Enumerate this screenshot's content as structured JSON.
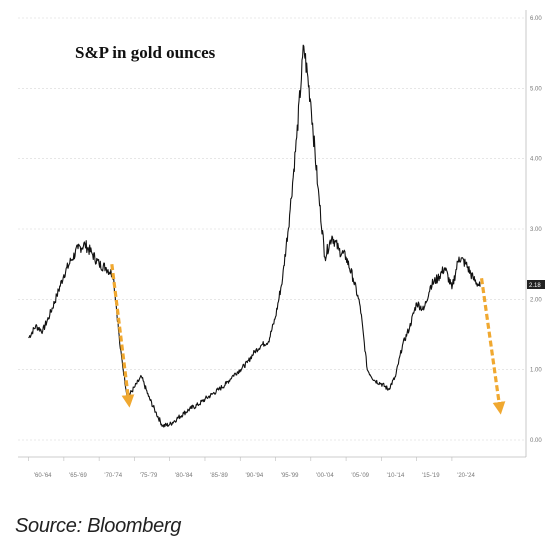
{
  "chart_data": {
    "type": "line",
    "title": "S&P in gold ounces",
    "xlabel": "",
    "ylabel": "",
    "ylim": [
      0,
      6
    ],
    "yticks": [
      "0.00",
      "1.00",
      "2.00",
      "3.00",
      "4.00",
      "5.00",
      "6.00"
    ],
    "xtick_labels": [
      "'60-'64",
      "'65-'69",
      "'70-'74",
      "'75-'79",
      "'80-'84",
      "'85-'89",
      "'90-'94",
      "'95-'99",
      "'00-'04",
      "'05-'09",
      "'10-'14",
      "'15-'19",
      "'20-'24"
    ],
    "last_value_label": "2.18",
    "grid": "horizontal",
    "series": [
      {
        "values": [
          [
            1960.0,
            1.45
          ],
          [
            1961.0,
            1.62
          ],
          [
            1962.0,
            1.55
          ],
          [
            1963.0,
            1.78
          ],
          [
            1964.0,
            2.05
          ],
          [
            1965.0,
            2.35
          ],
          [
            1966.0,
            2.55
          ],
          [
            1967.0,
            2.72
          ],
          [
            1968.0,
            2.78
          ],
          [
            1969.0,
            2.65
          ],
          [
            1970.0,
            2.5
          ],
          [
            1971.0,
            2.45
          ],
          [
            1972.0,
            2.35
          ],
          [
            1973.0,
            1.3
          ],
          [
            1974.0,
            0.6
          ],
          [
            1975.0,
            0.75
          ],
          [
            1976.0,
            0.9
          ],
          [
            1977.0,
            0.62
          ],
          [
            1978.0,
            0.4
          ],
          [
            1979.0,
            0.2
          ],
          [
            1980.0,
            0.22
          ],
          [
            1981.0,
            0.3
          ],
          [
            1982.0,
            0.38
          ],
          [
            1983.0,
            0.45
          ],
          [
            1984.0,
            0.5
          ],
          [
            1985.0,
            0.58
          ],
          [
            1986.0,
            0.65
          ],
          [
            1987.0,
            0.72
          ],
          [
            1988.0,
            0.8
          ],
          [
            1989.0,
            0.92
          ],
          [
            1990.0,
            1.0
          ],
          [
            1991.0,
            1.1
          ],
          [
            1992.0,
            1.25
          ],
          [
            1993.0,
            1.35
          ],
          [
            1994.0,
            1.4
          ],
          [
            1995.0,
            1.75
          ],
          [
            1996.0,
            2.3
          ],
          [
            1997.0,
            3.2
          ],
          [
            1998.0,
            4.3
          ],
          [
            1999.0,
            5.6
          ],
          [
            2000.0,
            4.8
          ],
          [
            2001.0,
            3.6
          ],
          [
            2002.0,
            2.6
          ],
          [
            2003.0,
            2.9
          ],
          [
            2004.0,
            2.7
          ],
          [
            2005.0,
            2.6
          ],
          [
            2006.0,
            2.3
          ],
          [
            2007.0,
            1.9
          ],
          [
            2008.0,
            1.0
          ],
          [
            2009.0,
            0.85
          ],
          [
            2010.0,
            0.8
          ],
          [
            2011.0,
            0.72
          ],
          [
            2012.0,
            0.9
          ],
          [
            2013.0,
            1.35
          ],
          [
            2014.0,
            1.6
          ],
          [
            2015.0,
            1.95
          ],
          [
            2016.0,
            1.85
          ],
          [
            2017.0,
            2.2
          ],
          [
            2018.0,
            2.3
          ],
          [
            2019.0,
            2.45
          ],
          [
            2020.0,
            2.15
          ],
          [
            2021.0,
            2.6
          ],
          [
            2022.0,
            2.5
          ],
          [
            2023.0,
            2.3
          ],
          [
            2024.0,
            2.18
          ]
        ]
      }
    ],
    "annotations": [
      {
        "type": "arrow",
        "color": "#f0a830",
        "from": [
          1971.8,
          2.5
        ],
        "to": [
          1974.2,
          0.55
        ]
      },
      {
        "type": "arrow",
        "color": "#f0a830",
        "from": [
          2024.2,
          2.3
        ],
        "to": [
          2026.8,
          0.45
        ]
      }
    ]
  },
  "source": "Source: Bloomberg"
}
